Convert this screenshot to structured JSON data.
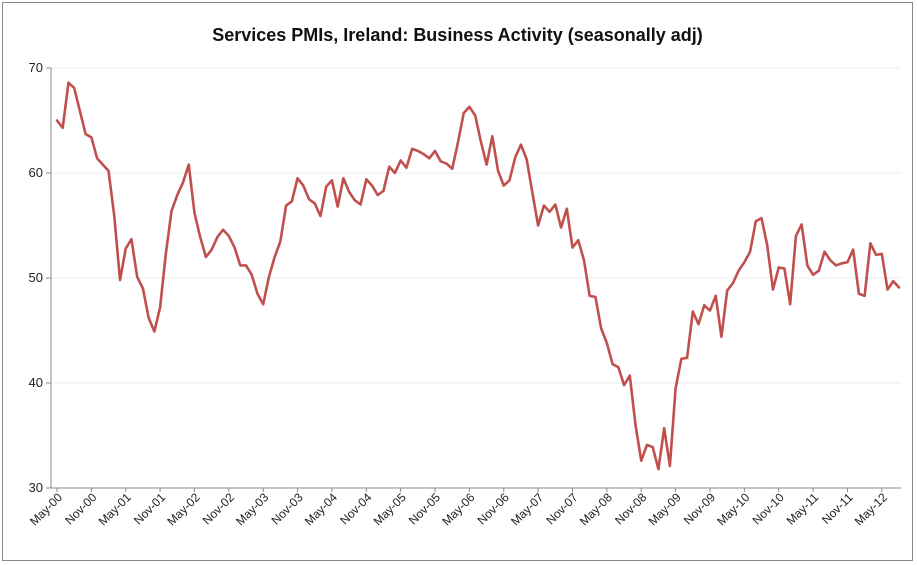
{
  "chart_data": {
    "type": "line",
    "title": "Services PMIs, Ireland: Business Activity (seasonally adj)",
    "xlabel": "",
    "ylabel": "",
    "ylim": [
      30,
      70
    ],
    "yticks": [
      30,
      40,
      50,
      60,
      70
    ],
    "grid": true,
    "line_color": "#c0504d",
    "x_tick_labels": [
      "May-00",
      "Nov-00",
      "May-01",
      "Nov-01",
      "May-02",
      "Nov-02",
      "May-03",
      "Nov-03",
      "May-04",
      "Nov-04",
      "May-05",
      "Nov-05",
      "May-06",
      "Nov-06",
      "May-07",
      "Nov-07",
      "May-08",
      "Nov-08",
      "May-09",
      "Nov-09",
      "May-10",
      "Nov-10",
      "May-11",
      "Nov-11",
      "May-12"
    ],
    "series": [
      {
        "name": "Business Activity",
        "start": "May-00",
        "frequency": "monthly",
        "values": [
          65.0,
          64.3,
          68.6,
          68.1,
          65.9,
          63.7,
          63.4,
          61.4,
          60.8,
          60.2,
          55.9,
          49.8,
          52.8,
          53.7,
          50.1,
          49.0,
          46.2,
          44.9,
          47.2,
          52.3,
          56.4,
          57.9,
          59.1,
          60.8,
          56.2,
          53.9,
          52.0,
          52.7,
          53.9,
          54.6,
          54.0,
          52.9,
          51.2,
          51.2,
          50.3,
          48.5,
          47.5,
          50.1,
          52.0,
          53.5,
          56.9,
          57.3,
          59.5,
          58.8,
          57.5,
          57.1,
          55.9,
          58.7,
          59.3,
          56.8,
          59.5,
          58.2,
          57.4,
          57.0,
          59.4,
          58.8,
          57.9,
          58.3,
          60.6,
          60.0,
          61.2,
          60.5,
          62.3,
          62.1,
          61.8,
          61.4,
          62.1,
          61.1,
          60.9,
          60.4,
          62.9,
          65.7,
          66.3,
          65.5,
          63.0,
          60.8,
          63.5,
          60.2,
          58.8,
          59.3,
          61.5,
          62.7,
          61.3,
          58.1,
          55.0,
          56.9,
          56.3,
          57.0,
          54.8,
          56.6,
          52.9,
          53.6,
          51.7,
          48.3,
          48.2,
          45.2,
          43.8,
          41.8,
          41.5,
          39.8,
          40.7,
          36.0,
          32.6,
          34.1,
          33.9,
          31.8,
          35.7,
          32.1,
          39.5,
          42.3,
          42.4,
          46.8,
          45.6,
          47.4,
          46.9,
          48.3,
          44.4,
          48.8,
          49.5,
          50.7,
          51.5,
          52.5,
          55.4,
          55.7,
          53.1,
          48.9,
          51.0,
          50.9,
          47.5,
          54.0,
          55.1,
          51.2,
          50.3,
          50.7,
          52.5,
          51.7,
          51.2,
          51.4,
          51.5,
          52.7,
          48.5,
          48.3,
          53.3,
          52.2,
          52.3,
          48.9,
          49.7,
          49.1
        ]
      }
    ]
  }
}
